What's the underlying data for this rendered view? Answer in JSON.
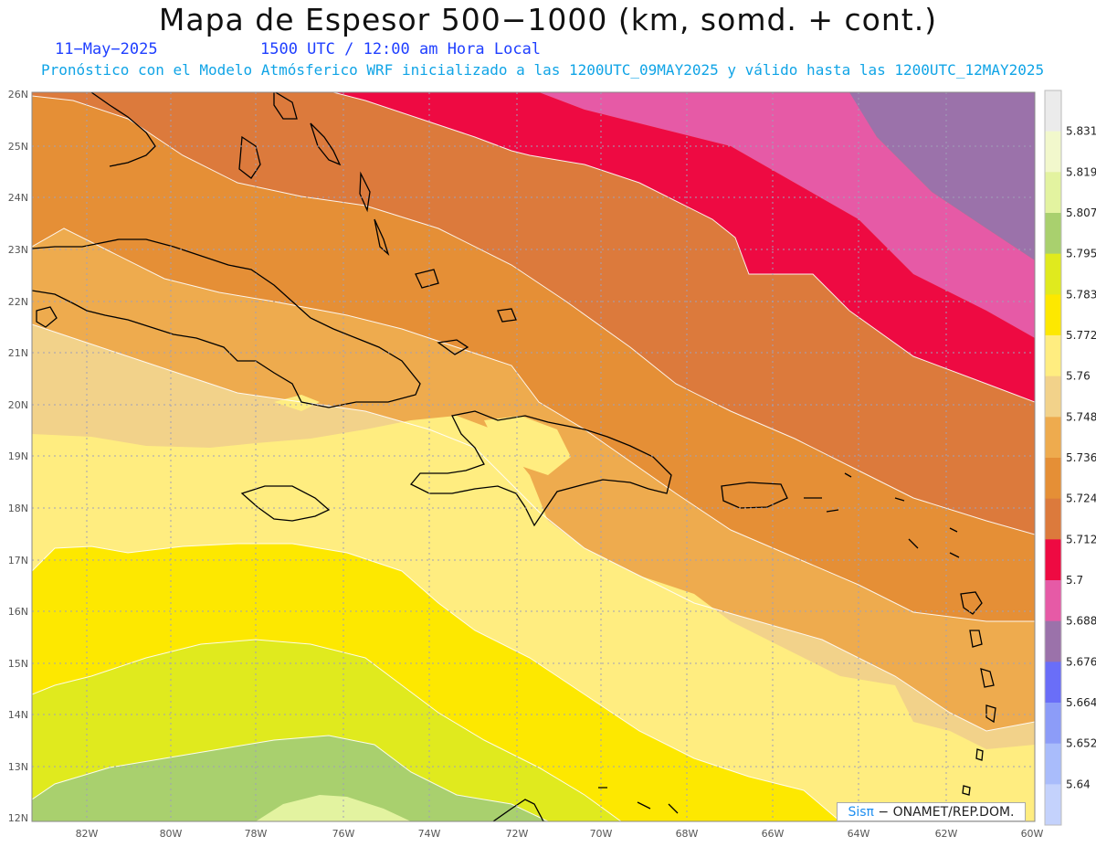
{
  "title": "Mapa de Espesor 500−1000 (km, somd. + cont.)",
  "date": "11−May−2025",
  "time": "1500 UTC / 12:00 am Hora Local",
  "description": "Pronóstico con el Modelo Atmósferico WRF inicializado a las 1200UTC_09MAY2025 y válido hasta las  1200UTC_12MAY2025",
  "credit": {
    "brand": "Sisπ",
    "text": " − ONAMET/REP.DOM."
  },
  "map": {
    "lat_labels": [
      "26N",
      "25N",
      "24N",
      "23N",
      "22N",
      "21N",
      "20N",
      "19N",
      "18N",
      "17N",
      "16N",
      "15N",
      "14N",
      "13N",
      "12N"
    ],
    "lon_labels": [
      "82W",
      "80W",
      "78W",
      "76W",
      "74W",
      "72W",
      "70W",
      "68W",
      "66W",
      "64W",
      "62W",
      "60W"
    ],
    "lat_range": [
      12,
      26
    ],
    "lon_range": [
      -83.3,
      -60
    ],
    "grid": true
  },
  "colorbar": {
    "labels": [
      "5.831",
      "5.819",
      "5.807",
      "5.795",
      "5.783",
      "5.772",
      "5.76",
      "5.748",
      "5.736",
      "5.724",
      "5.712",
      "5.7",
      "5.688",
      "5.676",
      "5.664",
      "5.652",
      "5.64"
    ],
    "colors": [
      "#ebebeb",
      "#f2f8cc",
      "#e3f3a0",
      "#a9d06e",
      "#e0ea1e",
      "#fde800",
      "#ffed80",
      "#f2d28a",
      "#eeab4e",
      "#e58f36",
      "#dc7a3c",
      "#ee0a42",
      "#e65aa6",
      "#9b72aa",
      "#6a6ef8",
      "#8c9cf8",
      "#a9bcfb",
      "#c4d2fc"
    ]
  },
  "bands": [
    {
      "name": "5.7 to 5.712",
      "color": "#ee0a42"
    },
    {
      "name": "5.688 to 5.7",
      "color": "#e65aa6"
    },
    {
      "name": "5.676 to 5.688",
      "color": "#9b72aa"
    },
    {
      "name": "5.712 to 5.724",
      "color": "#dc7a3c"
    },
    {
      "name": "5.724 to 5.736",
      "color": "#e58f36"
    },
    {
      "name": "5.736 to 5.748",
      "color": "#eeab4e"
    },
    {
      "name": "5.748 to 5.76",
      "color": "#f2d28a"
    },
    {
      "name": "5.76 to 5.772",
      "color": "#ffed80"
    },
    {
      "name": "5.772 to 5.783",
      "color": "#fde800"
    },
    {
      "name": "5.783 to 5.795",
      "color": "#e0ea1e"
    },
    {
      "name": "5.795 to 5.807",
      "color": "#a9d06e"
    },
    {
      "name": "5.807 to 5.819",
      "color": "#e3f3a0"
    }
  ]
}
